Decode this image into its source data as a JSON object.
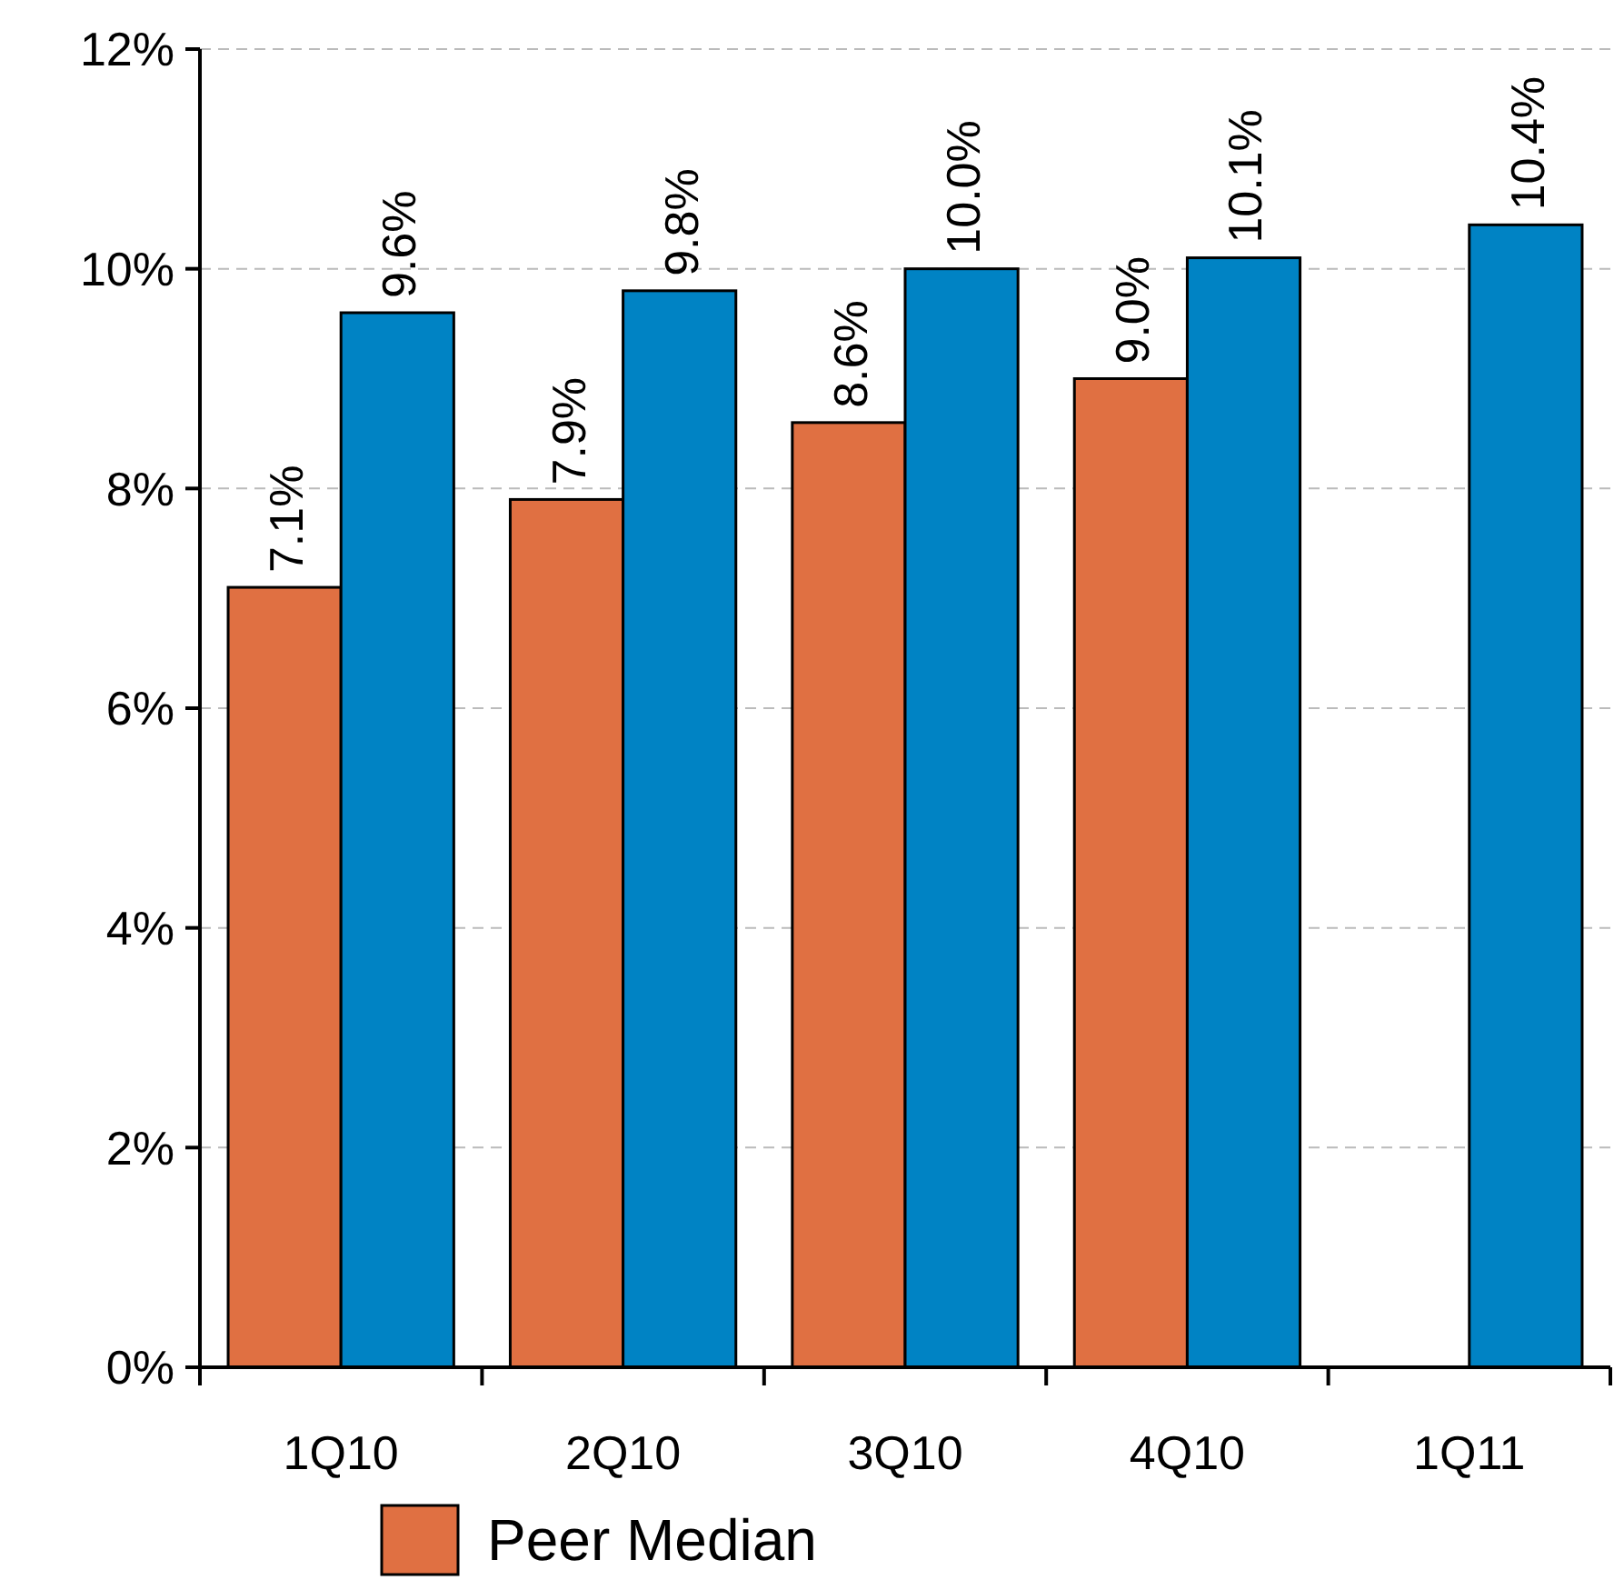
{
  "chart_data": {
    "type": "bar",
    "categories": [
      "1Q10",
      "2Q10",
      "3Q10",
      "4Q10",
      "1Q11"
    ],
    "series": [
      {
        "name": "Peer Median",
        "color": "#e07042",
        "values": [
          7.1,
          7.9,
          8.6,
          9.0,
          null
        ],
        "value_labels": [
          "7.1%",
          "7.9%",
          "8.6%",
          "9.0%",
          null
        ]
      },
      {
        "color": "#0083c4",
        "values": [
          9.6,
          9.8,
          10.0,
          10.1,
          10.4
        ],
        "value_labels": [
          "9.6%",
          "9.8%",
          "10.0%",
          "10.1%",
          "10.4%"
        ]
      }
    ],
    "ylim": [
      0,
      12
    ],
    "yticks": [
      {
        "value": 0,
        "label": "0%"
      },
      {
        "value": 2,
        "label": "2%"
      },
      {
        "value": 4,
        "label": "4%"
      },
      {
        "value": 6,
        "label": "6%"
      },
      {
        "value": 8,
        "label": "8%"
      },
      {
        "value": 10,
        "label": "10%"
      },
      {
        "value": 12,
        "label": "12%"
      }
    ],
    "grid": "y",
    "legend": "bottom"
  }
}
